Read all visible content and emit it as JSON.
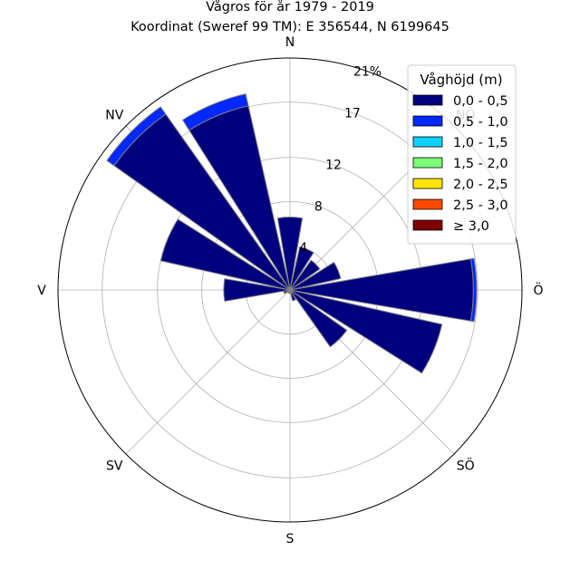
{
  "chart_data": {
    "type": "windrose",
    "title": "Vågros för år 1979 - 2019",
    "subtitle": "Koordinat (Sweref 99 TM): E 356544, N 6199645",
    "directions": [
      "N",
      "NÖ",
      "Ö",
      "SÖ",
      "S",
      "SV",
      "V",
      "NV"
    ],
    "radial_ticks": [
      "4",
      "8",
      "12",
      "17",
      "21%"
    ],
    "rmax": 21,
    "legend": {
      "title": "Våghöjd (m)",
      "placement": "top-right",
      "items": [
        {
          "label": "0,0 - 0,5",
          "color": "#00007f"
        },
        {
          "label": "0,5 - 1,0",
          "color": "#0028ff"
        },
        {
          "label": "1,0 - 1,5",
          "color": "#0dd0ff"
        },
        {
          "label": "1,5 - 2,0",
          "color": "#7cff79"
        },
        {
          "label": "2,0 - 2,5",
          "color": "#ffe500"
        },
        {
          "label": "2,5 - 3,0",
          "color": "#ff4a00"
        },
        {
          "label": "≥ 3,0",
          "color": "#7f0000"
        }
      ]
    },
    "sector_direction_deg": [
      0,
      22.5,
      45,
      67.5,
      90,
      112.5,
      135,
      157.5,
      180,
      202.5,
      225,
      247.5,
      270,
      292.5,
      315,
      337.5
    ],
    "series": [
      {
        "name": "0,0 - 0,5",
        "values": [
          6.6,
          4.0,
          3.3,
          4.7,
          16.6,
          14.1,
          6.3,
          1.0,
          0.3,
          0.3,
          0.3,
          0.6,
          6.0,
          12.0,
          19.5,
          17.1
        ]
      },
      {
        "name": "0,5 - 1,0",
        "values": [
          0.0,
          0.0,
          0.0,
          0.0,
          0.3,
          0.0,
          0.0,
          0.0,
          0.0,
          0.0,
          0.0,
          0.0,
          0.0,
          0.0,
          0.8,
          1.1
        ]
      },
      {
        "name": "1,0 - 1,5",
        "values": [
          0,
          0,
          0,
          0,
          0,
          0,
          0,
          0,
          0,
          0,
          0,
          0,
          0,
          0,
          0,
          0
        ]
      },
      {
        "name": "1,5 - 2,0",
        "values": [
          0,
          0,
          0,
          0,
          0,
          0,
          0,
          0,
          0,
          0,
          0,
          0,
          0,
          0,
          0,
          0
        ]
      },
      {
        "name": "2,0 - 2,5",
        "values": [
          0,
          0,
          0,
          0,
          0,
          0,
          0,
          0,
          0,
          0,
          0,
          0,
          0,
          0,
          0,
          0
        ]
      },
      {
        "name": "2,5 - 3,0",
        "values": [
          0,
          0,
          0,
          0,
          0,
          0,
          0,
          0,
          0,
          0,
          0,
          0,
          0,
          0,
          0,
          0
        ]
      },
      {
        "name": "≥ 3,0",
        "values": [
          0,
          0,
          0,
          0,
          0,
          0,
          0,
          0,
          0,
          0,
          0,
          0,
          0,
          0,
          0,
          0
        ]
      }
    ]
  }
}
